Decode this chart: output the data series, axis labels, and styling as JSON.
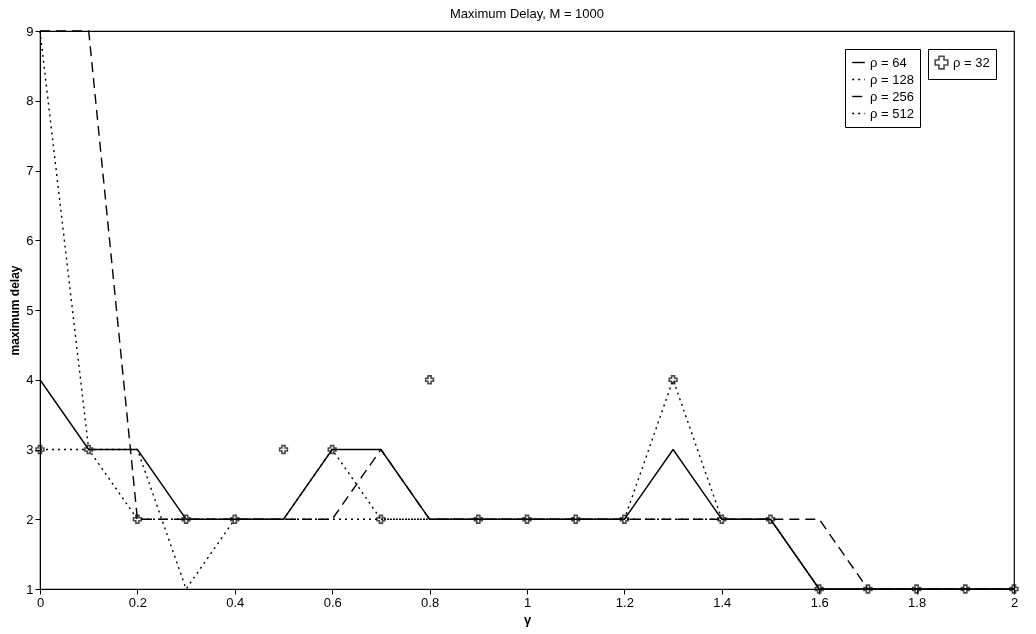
{
  "chart_data": {
    "type": "line",
    "title": "Maximum Delay, M = 1000",
    "xlabel": "γ",
    "ylabel": "maximum delay",
    "x": [
      0,
      0.1,
      0.2,
      0.3,
      0.4,
      0.5,
      0.6,
      0.7,
      0.8,
      0.9,
      1,
      1.1,
      1.2,
      1.3,
      1.4,
      1.5,
      1.6,
      1.7,
      1.8,
      1.9,
      2
    ],
    "series": [
      {
        "name": "ρ = 32",
        "type": "scatter",
        "marker": "cross",
        "color": "#000000",
        "values": [
          3,
          3,
          2,
          2,
          2,
          3,
          3,
          2,
          4,
          2,
          2,
          2,
          2,
          4,
          2,
          2,
          1,
          1,
          1,
          1,
          1
        ]
      },
      {
        "name": "ρ = 64",
        "line_style": "solid",
        "color": "#000000",
        "values": [
          4,
          3,
          3,
          2,
          2,
          2,
          3,
          3,
          2,
          2,
          2,
          2,
          2,
          3,
          2,
          2,
          1,
          1,
          1,
          1,
          1
        ]
      },
      {
        "name": "ρ = 128",
        "line_style": "dotted",
        "color": "#000000",
        "values": [
          9,
          3,
          2,
          2,
          2,
          2,
          2,
          2,
          2,
          2,
          2,
          2,
          2,
          2,
          2,
          2,
          1,
          1,
          1,
          1,
          1
        ]
      },
      {
        "name": "ρ = 256",
        "line_style": "dashed",
        "color": "#000000",
        "values": [
          9,
          9,
          2,
          2,
          2,
          2,
          2,
          3,
          2,
          2,
          2,
          2,
          2,
          2,
          2,
          2,
          2,
          1,
          1,
          1,
          1
        ]
      },
      {
        "name": "ρ = 512",
        "line_style": "dotted",
        "color": "#000000",
        "values": [
          3,
          3,
          3,
          1,
          2,
          2,
          3,
          2,
          2,
          2,
          2,
          2,
          2,
          4,
          2,
          2,
          1,
          1,
          1,
          1,
          1
        ]
      }
    ],
    "xlim": [
      0,
      2
    ],
    "xticks": [
      0,
      0.2,
      0.4,
      0.6,
      0.8,
      1,
      1.2,
      1.4,
      1.6,
      1.8,
      2
    ],
    "ylim": [
      1,
      9
    ],
    "yticks": [
      1,
      2,
      3,
      4,
      5,
      6,
      7,
      8,
      9
    ],
    "grid": false,
    "legend": "top right"
  }
}
